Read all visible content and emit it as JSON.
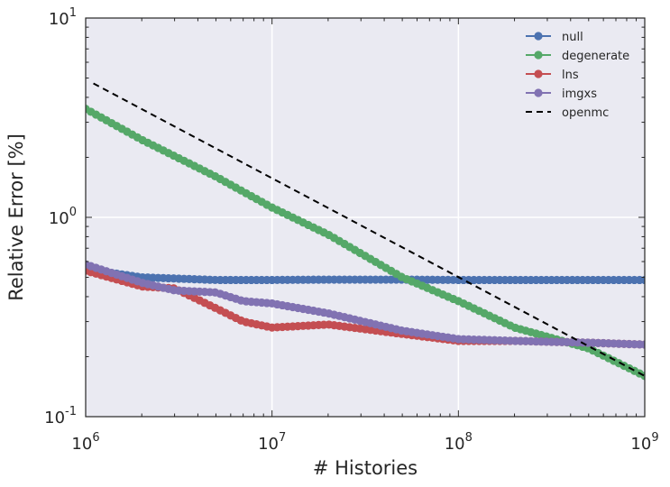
{
  "chart_data": {
    "type": "line",
    "xscale": "log",
    "yscale": "log",
    "xlim": [
      1000000,
      1000000000
    ],
    "ylim": [
      0.1,
      10
    ],
    "xlabel": "# Histories",
    "ylabel": "Relative Error [%]",
    "grid": true,
    "legend_position": "top-right",
    "x_ticks": [
      {
        "value": 1000000,
        "base": "10",
        "exp": "6"
      },
      {
        "value": 10000000,
        "base": "10",
        "exp": "7"
      },
      {
        "value": 100000000,
        "base": "10",
        "exp": "8"
      },
      {
        "value": 1000000000,
        "base": "10",
        "exp": "9"
      }
    ],
    "y_ticks": [
      {
        "value": 0.1,
        "base": "10",
        "exp": "-1"
      },
      {
        "value": 1,
        "base": "10",
        "exp": "0"
      },
      {
        "value": 10,
        "base": "10",
        "exp": "1"
      }
    ],
    "series": [
      {
        "name": "null",
        "color": "#4c72b0",
        "marker": "o",
        "style": "solid",
        "x": [
          1000000,
          2000000,
          5000000,
          10000000,
          20000000,
          50000000,
          100000000,
          200000000,
          500000000,
          1000000000
        ],
        "y": [
          0.55,
          0.5,
          0.485,
          0.485,
          0.487,
          0.487,
          0.485,
          0.485,
          0.485,
          0.485
        ]
      },
      {
        "name": "degenerate",
        "color": "#55a868",
        "marker": "o",
        "style": "solid",
        "x": [
          1000000,
          2000000,
          5000000,
          10000000,
          20000000,
          50000000,
          100000000,
          200000000,
          500000000,
          1000000000
        ],
        "y": [
          3.5,
          2.45,
          1.6,
          1.12,
          0.82,
          0.5,
          0.38,
          0.28,
          0.22,
          0.16
        ]
      },
      {
        "name": "lns",
        "color": "#c44e52",
        "marker": "o",
        "style": "solid",
        "x": [
          1000000,
          2000000,
          3000000,
          5000000,
          7000000,
          10000000,
          20000000,
          50000000,
          100000000,
          200000000,
          500000000,
          1000000000
        ],
        "y": [
          0.54,
          0.45,
          0.44,
          0.35,
          0.3,
          0.28,
          0.29,
          0.26,
          0.24,
          0.24,
          0.235,
          0.23
        ]
      },
      {
        "name": "imgxs",
        "color": "#8172b2",
        "marker": "o",
        "style": "solid",
        "x": [
          1000000,
          2000000,
          3000000,
          5000000,
          7000000,
          10000000,
          20000000,
          50000000,
          100000000,
          200000000,
          500000000,
          1000000000
        ],
        "y": [
          0.58,
          0.47,
          0.43,
          0.42,
          0.38,
          0.37,
          0.33,
          0.27,
          0.245,
          0.24,
          0.235,
          0.23
        ]
      },
      {
        "name": "openmc",
        "color": "#000000",
        "marker": "none",
        "style": "dashed",
        "x": [
          1100000,
          1000000000
        ],
        "y": [
          4.7,
          0.16
        ]
      }
    ]
  }
}
